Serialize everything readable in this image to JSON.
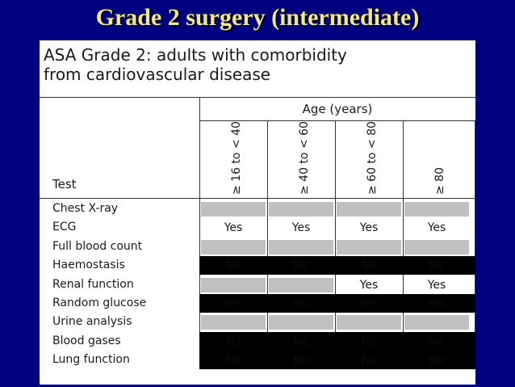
{
  "slide": {
    "title": "Grade 2 surgery (intermediate)"
  },
  "figure": {
    "caption_line1": "ASA Grade 2: adults with comorbidity",
    "caption_line2": "from cardiovascular disease",
    "age_header": "Age (years)",
    "test_header": "Test",
    "age_groups": [
      "≥ 16 to < 40",
      "≥ 40 to < 60",
      "≥ 60 to < 80",
      "≥ 80"
    ],
    "rows": [
      {
        "test": "Chest X-ray",
        "shade": "grey",
        "cells": [
          "",
          "",
          "",
          ""
        ]
      },
      {
        "test": "ECG",
        "shade": "white",
        "cells": [
          "Yes",
          "Yes",
          "Yes",
          "Yes"
        ]
      },
      {
        "test": "Full blood count",
        "shade": "grey",
        "cells": [
          "",
          "",
          "",
          ""
        ]
      },
      {
        "test": "Haemostasis",
        "shade": "black",
        "cells": [
          "No",
          "No",
          "No",
          "No"
        ]
      },
      {
        "test": "Renal function",
        "shade": "mixed",
        "cells": [
          "",
          "",
          "Yes",
          "Yes"
        ]
      },
      {
        "test": "Random glucose",
        "shade": "black",
        "cells": [
          "Yes",
          "Yes",
          "Yes",
          "Yes"
        ]
      },
      {
        "test": "Urine analysis",
        "shade": "grey",
        "cells": [
          "",
          "",
          "",
          ""
        ]
      },
      {
        "test": "Blood gases",
        "shade": "black",
        "cells": [
          "No",
          "No",
          "No",
          "No"
        ]
      },
      {
        "test": "Lung function",
        "shade": "black",
        "cells": [
          "No",
          "No",
          "No",
          "No"
        ]
      }
    ]
  }
}
